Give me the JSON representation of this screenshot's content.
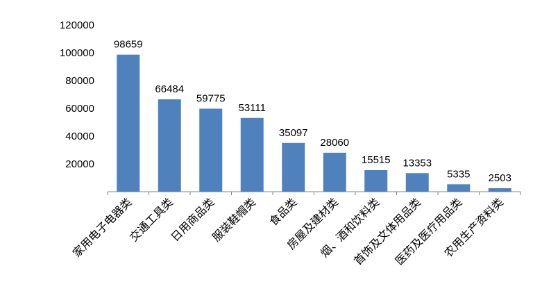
{
  "chart_data": {
    "type": "bar",
    "categories": [
      "家用电子电器类",
      "交通工具类",
      "日用商品类",
      "服装鞋帽类",
      "食品类",
      "房屋及建材类",
      "烟、酒和饮料类",
      "首饰及文体用品类",
      "医药及医疗用品类",
      "农用生产资料类"
    ],
    "values": [
      98659,
      66484,
      59775,
      53111,
      35097,
      28060,
      15515,
      13353,
      5335,
      2503
    ],
    "data_labels": [
      "98659",
      "66484",
      "59775",
      "53111",
      "35097",
      "28060",
      "15515",
      "13353",
      "5335",
      "2503"
    ],
    "yticks": [
      "20000",
      "40000",
      "60000",
      "80000",
      "100000",
      "120000"
    ],
    "ytick_values": [
      20000,
      40000,
      60000,
      80000,
      100000,
      120000
    ],
    "ylim": [
      0,
      120000
    ],
    "bar_color": "#4f81bd",
    "grid": false,
    "legend": false
  }
}
